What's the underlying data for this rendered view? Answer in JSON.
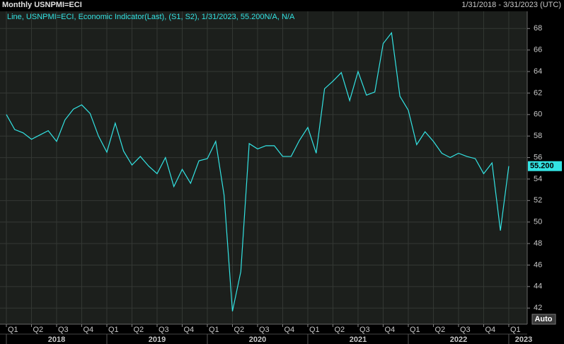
{
  "chart_data": {
    "type": "line",
    "title": "Monthly USNPMI=ECI",
    "date_range": "1/31/2018 - 3/31/2023 (UTC)",
    "legend": "Line, USNPMI=ECI, Economic Indicator(Last), (S1, S2), 1/31/2023, 55.200N/A, N/A",
    "series": [
      {
        "name": "USNPMI=ECI",
        "color": "#33e3e3",
        "values": [
          60.0,
          58.6,
          58.3,
          57.7,
          58.1,
          58.5,
          57.5,
          59.5,
          60.5,
          60.9,
          60.1,
          58.0,
          56.5,
          59.2,
          56.6,
          55.3,
          56.1,
          55.2,
          54.5,
          56.0,
          53.3,
          54.9,
          53.6,
          55.7,
          55.9,
          57.5,
          52.5,
          41.7,
          45.4,
          57.3,
          56.8,
          57.1,
          57.1,
          56.1,
          56.1,
          57.6,
          58.8,
          56.4,
          62.4,
          63.1,
          63.9,
          61.3,
          64.0,
          61.8,
          62.1,
          66.6,
          67.6,
          61.7,
          60.4,
          57.2,
          58.4,
          57.5,
          56.4,
          56.0,
          56.4,
          56.1,
          55.9,
          54.5,
          55.5,
          49.2,
          55.2
        ],
        "value_labels": [
          null,
          null,
          null,
          null,
          null,
          null,
          null,
          null,
          null,
          null,
          null,
          null,
          null,
          null,
          null,
          null,
          null,
          null,
          null,
          null,
          null,
          null,
          null,
          null,
          null,
          null,
          null,
          null,
          null,
          null,
          null,
          null,
          null,
          null,
          null,
          null,
          null,
          null,
          null,
          null,
          null,
          null,
          null,
          null,
          null,
          null,
          null,
          null,
          null,
          null,
          null,
          null,
          null,
          null,
          null,
          null,
          null,
          null,
          null,
          null,
          "55.200"
        ]
      }
    ],
    "xlim": [
      -0.76,
      62.2
    ],
    "xticks": [
      {
        "value": 0,
        "label": "Q1"
      },
      {
        "value": 3,
        "label": "Q2"
      },
      {
        "value": 6,
        "label": "Q3"
      },
      {
        "value": 9,
        "label": "Q4"
      },
      {
        "value": 12,
        "label": "Q1"
      },
      {
        "value": 15,
        "label": "Q2"
      },
      {
        "value": 18,
        "label": "Q3"
      },
      {
        "value": 21,
        "label": "Q4"
      },
      {
        "value": 24,
        "label": "Q1"
      },
      {
        "value": 27,
        "label": "Q2"
      },
      {
        "value": 30,
        "label": "Q3"
      },
      {
        "value": 33,
        "label": "Q4"
      },
      {
        "value": 36,
        "label": "Q1"
      },
      {
        "value": 39,
        "label": "Q2"
      },
      {
        "value": 42,
        "label": "Q3"
      },
      {
        "value": 45,
        "label": "Q4"
      },
      {
        "value": 48,
        "label": "Q1"
      },
      {
        "value": 51,
        "label": "Q2"
      },
      {
        "value": 54,
        "label": "Q3"
      },
      {
        "value": 57,
        "label": "Q4"
      },
      {
        "value": 60,
        "label": "Q1"
      }
    ],
    "year_labels": [
      {
        "value": 0,
        "label": "2018"
      },
      {
        "value": 12,
        "label": "2019"
      },
      {
        "value": 24,
        "label": "2020"
      },
      {
        "value": 36,
        "label": "2021"
      },
      {
        "value": 48,
        "label": "2022"
      },
      {
        "value": 60,
        "label": "2023"
      }
    ],
    "ylim": [
      40.5,
      69.6
    ],
    "yticks": [
      42,
      44,
      46,
      48,
      50,
      52,
      54,
      56,
      58,
      60,
      62,
      64,
      66,
      68
    ],
    "grid": true,
    "auto_button": "Auto"
  }
}
